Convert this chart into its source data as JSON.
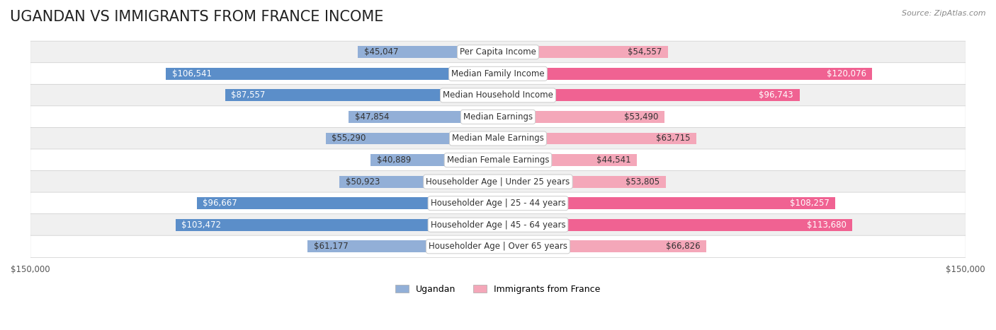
{
  "title": "UGANDAN VS IMMIGRANTS FROM FRANCE INCOME",
  "source": "Source: ZipAtlas.com",
  "categories": [
    "Per Capita Income",
    "Median Family Income",
    "Median Household Income",
    "Median Earnings",
    "Median Male Earnings",
    "Median Female Earnings",
    "Householder Age | Under 25 years",
    "Householder Age | 25 - 44 years",
    "Householder Age | 45 - 64 years",
    "Householder Age | Over 65 years"
  ],
  "ugandan_values": [
    45047,
    106541,
    87557,
    47854,
    55290,
    40889,
    50923,
    96667,
    103472,
    61177
  ],
  "france_values": [
    54557,
    120076,
    96743,
    53490,
    63715,
    44541,
    53805,
    108257,
    113680,
    66826
  ],
  "max_val": 150000,
  "ugandan_color": "#92afd7",
  "ugandan_color_dark": "#5b8ec9",
  "france_color": "#f4a7b9",
  "france_color_dark": "#f06292",
  "label_bg_color": "#ffffff",
  "row_bg_color": "#f0f0f0",
  "row_alt_bg": "#ffffff",
  "bar_height": 0.55,
  "legend_ugandan": "Ugandan",
  "legend_france": "Immigrants from France",
  "background_color": "#ffffff",
  "title_fontsize": 15,
  "label_fontsize": 8.5,
  "value_fontsize": 8.5,
  "axis_label_fontsize": 8.5,
  "ugandan_text_threshold": 80000,
  "france_text_threshold": 80000
}
